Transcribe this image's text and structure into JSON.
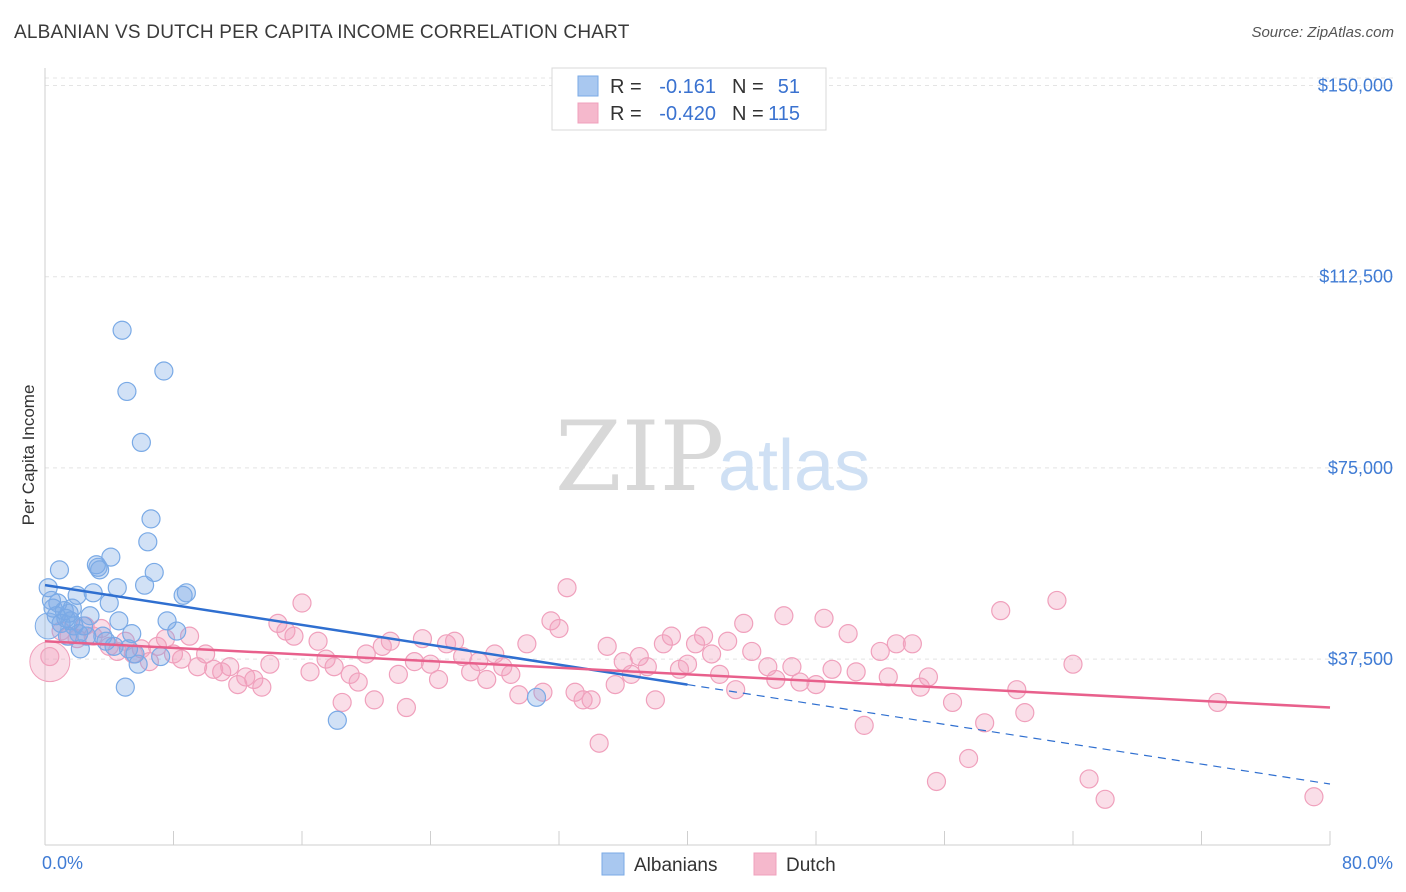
{
  "title": "ALBANIAN VS DUTCH PER CAPITA INCOME CORRELATION CHART",
  "source": "Source: ZipAtlas.com",
  "watermark": {
    "zip": "ZIP",
    "atlas": "atlas"
  },
  "legend": {
    "rows": [
      {
        "r_label": "R =",
        "r_value": "-0.161",
        "n_label": "N =",
        "n_value": "51",
        "color": "#a9c8f0"
      },
      {
        "r_label": "R =",
        "r_value": "-0.420",
        "n_label": "N =",
        "n_value": "115",
        "color": "#f5b8cc"
      }
    ]
  },
  "bottom_legend": [
    {
      "label": "Albanians",
      "color": "#a9c8f0"
    },
    {
      "label": "Dutch",
      "color": "#f5b8cc"
    }
  ],
  "chart_data": {
    "type": "scatter",
    "xlabel": "",
    "ylabel": "Per Capita Income",
    "xlim": [
      0,
      80
    ],
    "ylim": [
      3000,
      155000
    ],
    "x_tick_labels": [
      "0.0%",
      "80.0%"
    ],
    "y_ticks": [
      37500,
      75000,
      112500,
      150000
    ],
    "y_tick_labels": [
      "$37,500",
      "$75,000",
      "$112,500",
      "$150,000"
    ],
    "grid": true,
    "series": [
      {
        "name": "Albanians",
        "color": "#7aaae6",
        "line_color": "#2f6fd0",
        "trend": {
          "x0": 0,
          "y0": 52000,
          "x1": 40,
          "y1": 32500,
          "dash_to_x": 80,
          "dash_to_y": 13000
        },
        "points": [
          [
            0.2,
            51500
          ],
          [
            0.4,
            49000
          ],
          [
            0.5,
            47500
          ],
          [
            0.7,
            46000
          ],
          [
            0.8,
            48500
          ],
          [
            0.9,
            55000
          ],
          [
            1.0,
            44500
          ],
          [
            1.2,
            47000
          ],
          [
            1.3,
            45500
          ],
          [
            1.4,
            42000
          ],
          [
            1.5,
            46500
          ],
          [
            1.6,
            45000
          ],
          [
            1.7,
            47500
          ],
          [
            1.8,
            44000
          ],
          [
            2.0,
            50000
          ],
          [
            2.1,
            42500
          ],
          [
            2.2,
            39500
          ],
          [
            2.4,
            44000
          ],
          [
            2.6,
            42000
          ],
          [
            2.8,
            46000
          ],
          [
            3.0,
            50500
          ],
          [
            3.2,
            56000
          ],
          [
            3.3,
            55500
          ],
          [
            3.4,
            55000
          ],
          [
            3.6,
            42000
          ],
          [
            3.8,
            41000
          ],
          [
            4.0,
            48500
          ],
          [
            4.1,
            57500
          ],
          [
            4.3,
            40000
          ],
          [
            4.5,
            51500
          ],
          [
            4.6,
            45000
          ],
          [
            4.8,
            102000
          ],
          [
            5.0,
            32000
          ],
          [
            5.1,
            90000
          ],
          [
            5.2,
            39500
          ],
          [
            5.4,
            42500
          ],
          [
            5.6,
            38500
          ],
          [
            5.8,
            36500
          ],
          [
            6.0,
            80000
          ],
          [
            6.2,
            52000
          ],
          [
            6.4,
            60500
          ],
          [
            6.6,
            65000
          ],
          [
            6.8,
            54500
          ],
          [
            7.2,
            38000
          ],
          [
            7.4,
            94000
          ],
          [
            7.6,
            45000
          ],
          [
            8.2,
            43000
          ],
          [
            8.6,
            50000
          ],
          [
            8.8,
            50500
          ],
          [
            18.2,
            25500
          ],
          [
            30.6,
            30000
          ]
        ]
      },
      {
        "name": "Dutch",
        "color": "#f0a0bc",
        "line_color": "#e8608c",
        "trend": {
          "x0": 0,
          "y0": 41000,
          "x1": 80,
          "y1": 28000
        },
        "points": [
          [
            0.3,
            38000
          ],
          [
            1.0,
            43000
          ],
          [
            1.5,
            42000
          ],
          [
            2.0,
            41500
          ],
          [
            2.5,
            44000
          ],
          [
            3.0,
            42000
          ],
          [
            3.5,
            43500
          ],
          [
            4.0,
            40000
          ],
          [
            4.5,
            39000
          ],
          [
            5.0,
            41000
          ],
          [
            5.5,
            38500
          ],
          [
            6.0,
            39500
          ],
          [
            6.5,
            37000
          ],
          [
            7.0,
            40000
          ],
          [
            7.5,
            41500
          ],
          [
            8.0,
            38500
          ],
          [
            8.5,
            37500
          ],
          [
            9.0,
            42000
          ],
          [
            9.5,
            36000
          ],
          [
            10.0,
            38500
          ],
          [
            10.5,
            35500
          ],
          [
            11.0,
            35000
          ],
          [
            11.5,
            36000
          ],
          [
            12.0,
            32500
          ],
          [
            12.5,
            34000
          ],
          [
            13.0,
            33500
          ],
          [
            13.5,
            32000
          ],
          [
            14.0,
            36500
          ],
          [
            14.5,
            44500
          ],
          [
            15.0,
            43000
          ],
          [
            15.5,
            42000
          ],
          [
            16.0,
            48500
          ],
          [
            16.5,
            35000
          ],
          [
            17.0,
            41000
          ],
          [
            17.5,
            37500
          ],
          [
            18.0,
            36000
          ],
          [
            18.5,
            29000
          ],
          [
            19.0,
            34500
          ],
          [
            19.5,
            33000
          ],
          [
            20.0,
            38500
          ],
          [
            20.5,
            29500
          ],
          [
            21.0,
            40000
          ],
          [
            21.5,
            41000
          ],
          [
            22.0,
            34500
          ],
          [
            22.5,
            28000
          ],
          [
            23.0,
            37000
          ],
          [
            23.5,
            41500
          ],
          [
            24.0,
            36500
          ],
          [
            24.5,
            33500
          ],
          [
            25.0,
            40500
          ],
          [
            25.5,
            41000
          ],
          [
            26.0,
            38000
          ],
          [
            26.5,
            35000
          ],
          [
            27.0,
            37000
          ],
          [
            27.5,
            33500
          ],
          [
            28.0,
            38500
          ],
          [
            28.5,
            36000
          ],
          [
            29.0,
            34500
          ],
          [
            29.5,
            30500
          ],
          [
            30.0,
            40500
          ],
          [
            31.0,
            31000
          ],
          [
            31.5,
            45000
          ],
          [
            32.0,
            43500
          ],
          [
            32.5,
            51500
          ],
          [
            33.0,
            31000
          ],
          [
            33.5,
            29500
          ],
          [
            34.0,
            29500
          ],
          [
            34.5,
            21000
          ],
          [
            35.0,
            40000
          ],
          [
            35.5,
            32500
          ],
          [
            36.0,
            37000
          ],
          [
            36.5,
            34500
          ],
          [
            37.0,
            38000
          ],
          [
            37.5,
            36000
          ],
          [
            38.0,
            29500
          ],
          [
            38.5,
            40500
          ],
          [
            39.0,
            42000
          ],
          [
            39.5,
            35500
          ],
          [
            40.0,
            36500
          ],
          [
            40.5,
            40500
          ],
          [
            41.0,
            42000
          ],
          [
            41.5,
            38500
          ],
          [
            42.0,
            34500
          ],
          [
            42.5,
            41000
          ],
          [
            43.0,
            31500
          ],
          [
            43.5,
            44500
          ],
          [
            44.0,
            39000
          ],
          [
            45.0,
            36000
          ],
          [
            45.5,
            33500
          ],
          [
            46.0,
            46000
          ],
          [
            46.5,
            36000
          ],
          [
            47.0,
            33000
          ],
          [
            48.0,
            32500
          ],
          [
            48.5,
            45500
          ],
          [
            49.0,
            35500
          ],
          [
            50.0,
            42500
          ],
          [
            50.5,
            35000
          ],
          [
            51.0,
            24500
          ],
          [
            52.0,
            39000
          ],
          [
            52.5,
            34000
          ],
          [
            53.0,
            40500
          ],
          [
            54.0,
            40500
          ],
          [
            54.5,
            32000
          ],
          [
            55.0,
            34000
          ],
          [
            55.5,
            13500
          ],
          [
            56.5,
            29000
          ],
          [
            57.5,
            18000
          ],
          [
            58.5,
            25000
          ],
          [
            59.5,
            47000
          ],
          [
            60.5,
            31500
          ],
          [
            61.0,
            27000
          ],
          [
            63.0,
            49000
          ],
          [
            64.0,
            36500
          ],
          [
            65.0,
            14000
          ],
          [
            66.0,
            10000
          ],
          [
            73.0,
            29000
          ],
          [
            79.0,
            10500
          ]
        ]
      }
    ]
  }
}
